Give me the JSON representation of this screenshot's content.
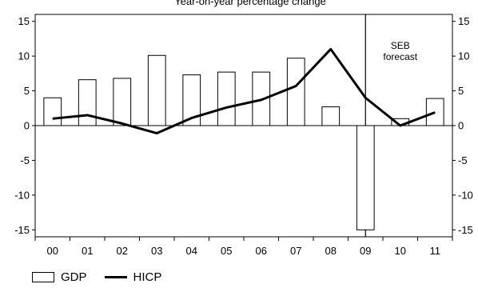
{
  "chart_data": {
    "type": "bar",
    "title": "Year-on-year percentage change",
    "categories": [
      "00",
      "01",
      "02",
      "03",
      "04",
      "05",
      "06",
      "07",
      "08",
      "09",
      "10",
      "11"
    ],
    "series": [
      {
        "name": "GDP",
        "type": "bar",
        "values": [
          4.0,
          6.6,
          6.8,
          10.1,
          7.3,
          7.7,
          7.7,
          9.7,
          2.7,
          -15.0,
          1.0,
          3.9
        ]
      },
      {
        "name": "HICP",
        "type": "line",
        "values": [
          1.0,
          1.5,
          0.3,
          -1.1,
          1.1,
          2.6,
          3.7,
          5.7,
          11.0,
          4.0,
          0.0,
          1.9
        ]
      }
    ],
    "ylim": [
      -16,
      16
    ],
    "yticks": [
      -15,
      -10,
      -5,
      0,
      5,
      10,
      15
    ],
    "annotation": [
      "SEB",
      "forecast"
    ],
    "legend_position": "bottom-left"
  }
}
